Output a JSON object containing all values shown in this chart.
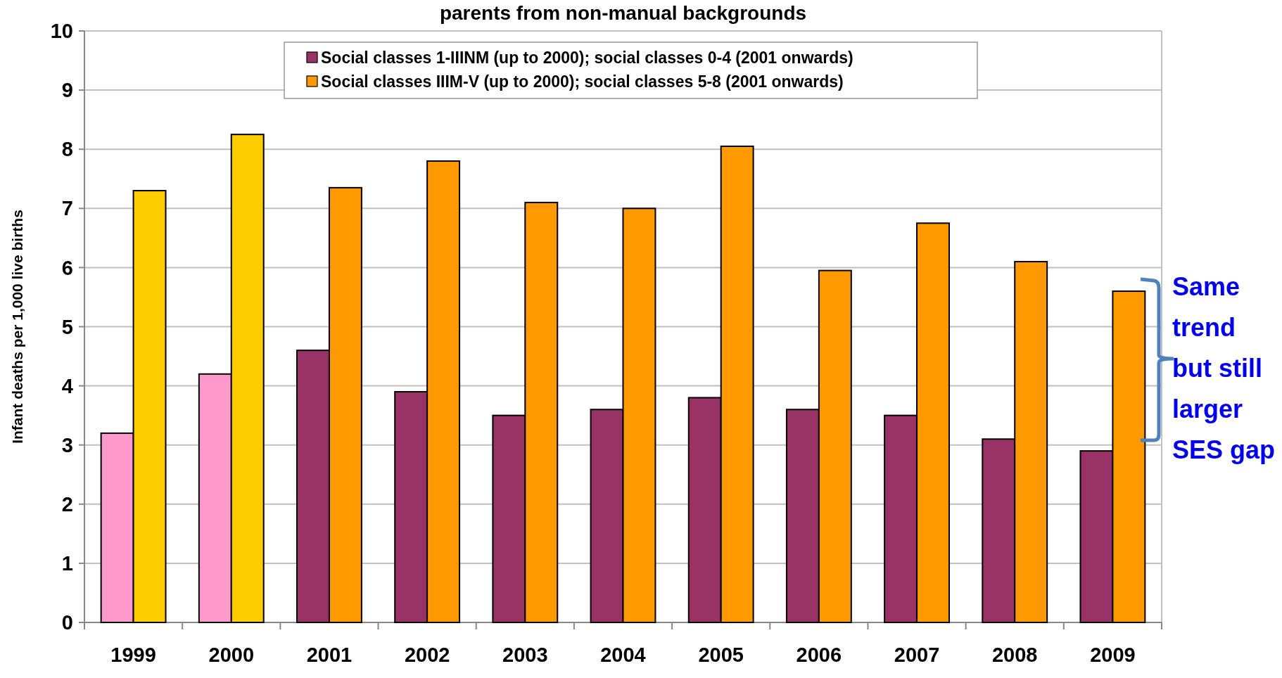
{
  "chart_data": {
    "type": "bar",
    "title": "parents from non-manual backgrounds",
    "ylabel": "Infant deaths per 1,000 live births",
    "categories": [
      "1999",
      "2000",
      "2001",
      "2002",
      "2003",
      "2004",
      "2005",
      "2006",
      "2007",
      "2008",
      "2009"
    ],
    "series": [
      {
        "name": "Social classes 1-IIINM (up to 2000); social classes 0-4 (2001 onwards)",
        "color": "#993366",
        "colors": [
          "#ff99cc",
          "#ff99cc",
          "#993366",
          "#993366",
          "#993366",
          "#993366",
          "#993366",
          "#993366",
          "#993366",
          "#993366",
          "#993366"
        ],
        "values": [
          3.2,
          4.2,
          4.6,
          3.9,
          3.5,
          3.6,
          3.8,
          3.6,
          3.5,
          3.1,
          2.9
        ]
      },
      {
        "name": "Social classes IIIM-V (up to 2000); social classes 5-8 (2001 onwards)",
        "color": "#ff9900",
        "colors": [
          "#ffcc00",
          "#ffcc00",
          "#ff9900",
          "#ff9900",
          "#ff9900",
          "#ff9900",
          "#ff9900",
          "#ff9900",
          "#ff9900",
          "#ff9900",
          "#ff9900"
        ],
        "values": [
          7.3,
          8.25,
          7.35,
          7.8,
          7.1,
          7.0,
          8.05,
          5.95,
          6.75,
          6.1,
          5.6
        ]
      }
    ],
    "ylim": [
      0,
      10
    ],
    "yticks": [
      0,
      1,
      2,
      3,
      4,
      5,
      6,
      7,
      8,
      9,
      10
    ],
    "grid": "y",
    "legend": "top",
    "annotations": [
      "Same trend but still larger SES gap"
    ]
  }
}
